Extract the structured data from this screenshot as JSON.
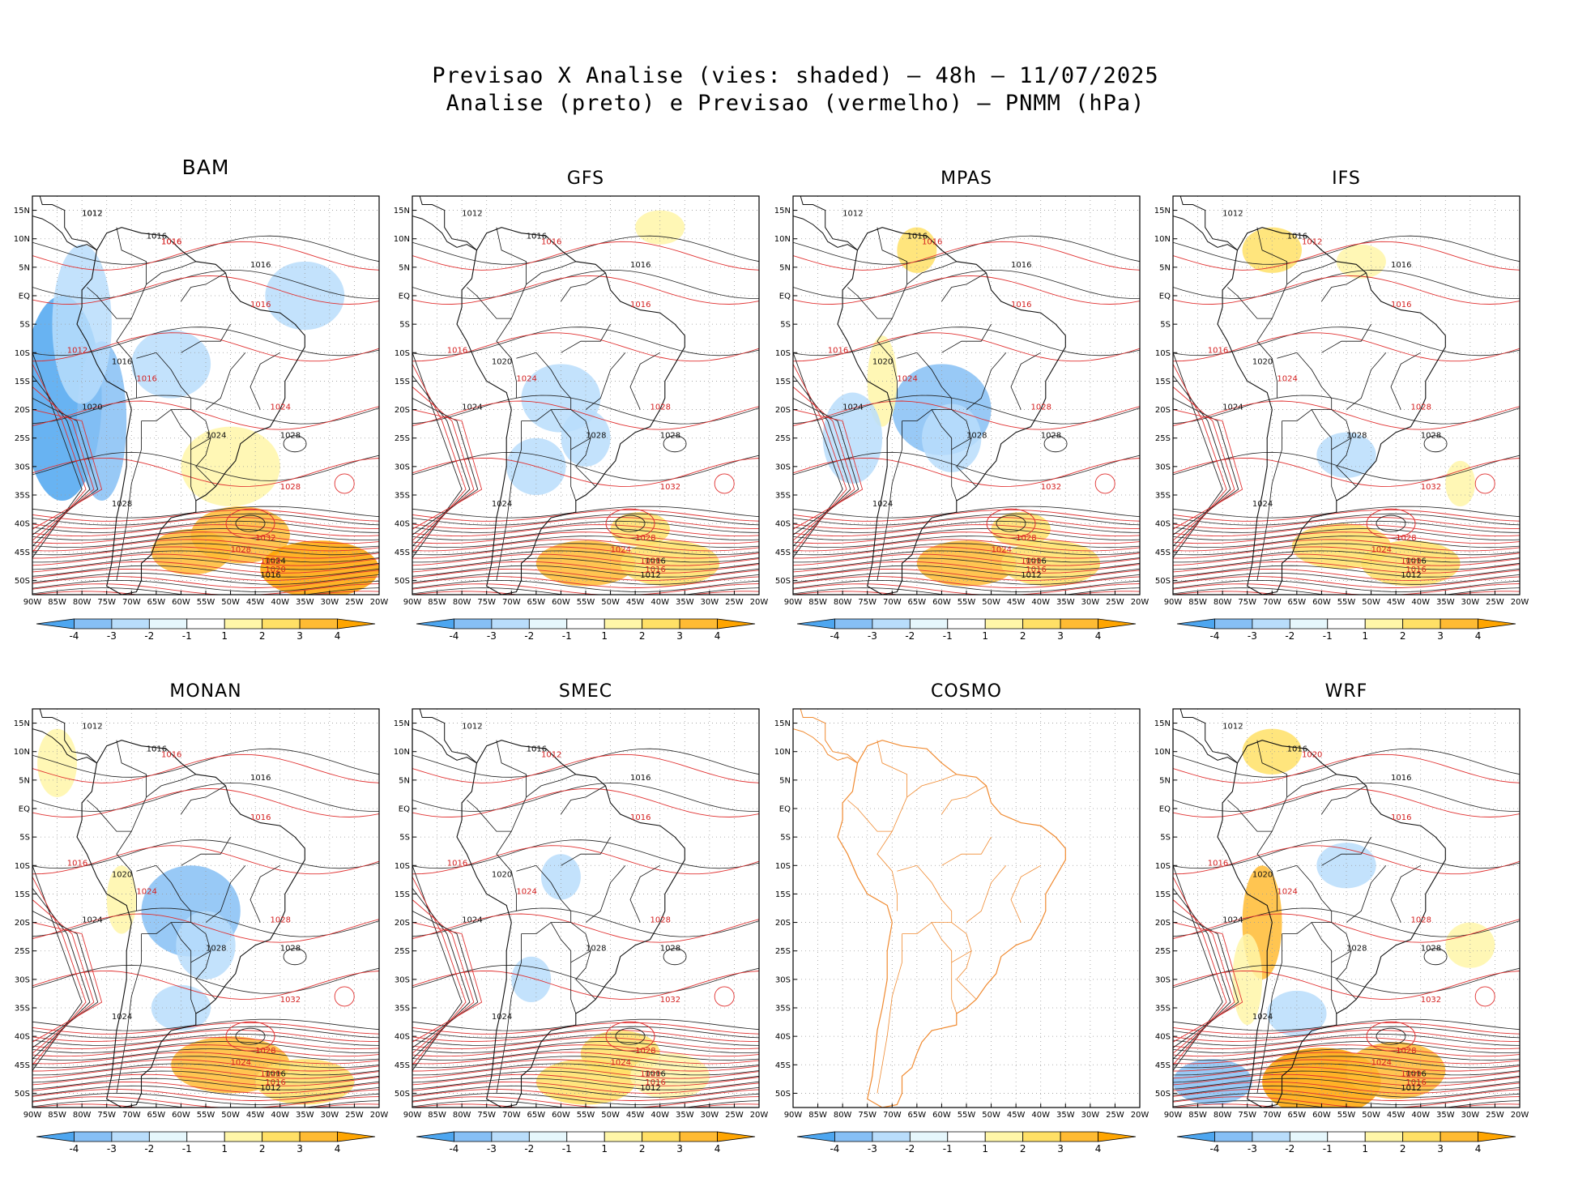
{
  "header": {
    "title_line1": "Previsao X Analise (vies: shaded) – 48h – 11/07/2025",
    "title_line2": "Analise (preto) e Previsao (vermelho) – PNMM (hPa)"
  },
  "axes": {
    "lat_labels": [
      "15N",
      "10N",
      "5N",
      "EQ",
      "5S",
      "10S",
      "15S",
      "20S",
      "25S",
      "30S",
      "35S",
      "40S",
      "45S",
      "50S"
    ],
    "lon_labels": [
      "90W",
      "85W",
      "80W",
      "75W",
      "70W",
      "65W",
      "60W",
      "55W",
      "50W",
      "45W",
      "40W",
      "35W",
      "30W",
      "25W",
      "20W"
    ]
  },
  "colorbar": {
    "labels": [
      "-4",
      "-3",
      "-2",
      "-1",
      "1",
      "2",
      "3",
      "4"
    ],
    "colors": [
      "#4da6f0",
      "#86bff5",
      "#b9ddfb",
      "#e6f7fc",
      "#ffffff",
      "#fff6a8",
      "#ffe066",
      "#ffbb33",
      "#ffa500"
    ]
  },
  "colors": {
    "analysis": "#222222",
    "forecast": "#e03030",
    "map_outline_cosmo": "#f08a30",
    "land_outline": "#111111"
  },
  "panels": [
    {
      "name": "BAM",
      "labels_black": [
        "1012",
        "1016",
        "1016",
        "1016",
        "1020",
        "1024",
        "1028",
        "1028",
        "1024",
        "1016",
        "1012"
      ],
      "labels_red": [
        "1016",
        "1016",
        "1012",
        "1016",
        "1024",
        "1028",
        "1032",
        "1028",
        "1024",
        "1020",
        "1016"
      ]
    },
    {
      "name": "GFS",
      "labels_black": [
        "1012",
        "1016",
        "1016",
        "1020",
        "1024",
        "1028",
        "1028",
        "1024",
        "1016",
        "1012"
      ],
      "labels_red": [
        "1016",
        "1016",
        "1016",
        "1024",
        "1028",
        "1032",
        "1028",
        "1024",
        "1020",
        "1016"
      ]
    },
    {
      "name": "MPAS",
      "labels_black": [
        "1012",
        "1016",
        "1016",
        "1020",
        "1024",
        "1028",
        "1028",
        "1024",
        "1016",
        "1012"
      ],
      "labels_red": [
        "1016",
        "1016",
        "1016",
        "1024",
        "1028",
        "1032",
        "1028",
        "1024",
        "1020",
        "1016"
      ]
    },
    {
      "name": "IFS",
      "labels_black": [
        "1012",
        "1016",
        "1016",
        "1020",
        "1024",
        "1028",
        "1028",
        "1024",
        "1016",
        "1012"
      ],
      "labels_red": [
        "1012",
        "1016",
        "1016",
        "1024",
        "1028",
        "1032",
        "1028",
        "1024",
        "1020",
        "1016"
      ]
    },
    {
      "name": "MONAN",
      "labels_black": [
        "1012",
        "1016",
        "1016",
        "1020",
        "1024",
        "1028",
        "1028",
        "1024",
        "1016",
        "1012"
      ],
      "labels_red": [
        "1016",
        "1016",
        "1016",
        "1024",
        "1028",
        "1032",
        "1028",
        "1024",
        "1020",
        "1016"
      ]
    },
    {
      "name": "SMEC",
      "labels_black": [
        "1012",
        "1016",
        "1016",
        "1020",
        "1024",
        "1028",
        "1028",
        "1024",
        "1016",
        "1012"
      ],
      "labels_red": [
        "1012",
        "1016",
        "1016",
        "1024",
        "1028",
        "1032",
        "1028",
        "1024",
        "1020",
        "1016"
      ]
    },
    {
      "name": "COSMO",
      "empty": true
    },
    {
      "name": "WRF",
      "labels_black": [
        "1012",
        "1016",
        "1016",
        "1020",
        "1024",
        "1028",
        "1028",
        "1024",
        "1016",
        "1012"
      ],
      "labels_red": [
        "1020",
        "1016",
        "1016",
        "1024",
        "1028",
        "1032",
        "1028",
        "1024",
        "1020",
        "1016"
      ]
    }
  ]
}
